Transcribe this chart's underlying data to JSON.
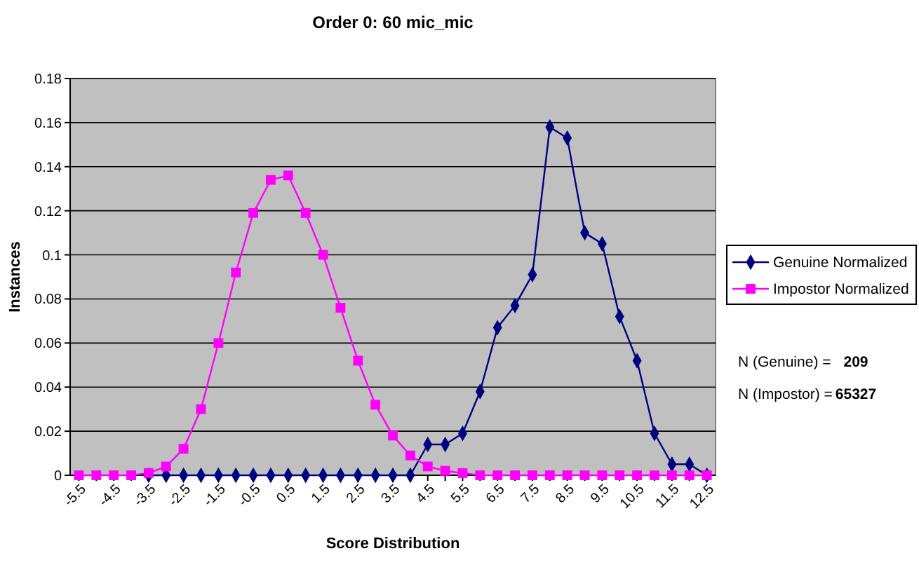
{
  "chart_data": {
    "type": "line",
    "title": "Order 0: 60 mic_mic",
    "xlabel": "Score Distribution",
    "ylabel": "Instances",
    "categories": [
      "-5.5",
      null,
      "-4.5",
      null,
      "-3.5",
      null,
      "-2.5",
      null,
      "-1.5",
      null,
      "-0.5",
      null,
      "0.5",
      null,
      "1.5",
      null,
      "2.5",
      null,
      "3.5",
      null,
      "4.5",
      null,
      "5.5",
      null,
      "6.5",
      null,
      "7.5",
      null,
      "8.5",
      null,
      "9.5",
      null,
      "10.5",
      null,
      "11.5",
      null,
      "12.5"
    ],
    "series": [
      {
        "name": "Genuine Normalized",
        "color": "#000080",
        "marker": "diamond",
        "values": [
          null,
          null,
          null,
          null,
          0,
          0,
          0,
          0,
          0,
          0,
          0,
          0,
          0,
          0,
          0,
          0,
          0,
          0,
          0,
          0,
          0.014,
          0.014,
          0.019,
          0.038,
          0.067,
          0.077,
          0.091,
          0.158,
          0.153,
          0.11,
          0.105,
          0.072,
          0.052,
          0.019,
          0.005,
          0.005,
          0
        ]
      },
      {
        "name": "Impostor Normalized",
        "color": "#ff00ff",
        "marker": "square",
        "values": [
          0,
          0,
          0,
          0,
          0.001,
          0.004,
          0.012,
          0.03,
          0.06,
          0.092,
          0.119,
          0.134,
          0.136,
          0.119,
          0.1,
          0.076,
          0.052,
          0.032,
          0.018,
          0.009,
          0.004,
          0.002,
          0.001,
          0,
          0,
          0,
          0,
          0,
          0,
          0,
          0,
          0,
          0,
          0,
          0,
          0,
          0
        ]
      }
    ],
    "ylim": [
      0,
      0.18
    ],
    "yticks": [
      0,
      0.02,
      0.04,
      0.06,
      0.08,
      0.1,
      0.12,
      0.14,
      0.16,
      0.18
    ],
    "grid": "y",
    "legend": "right",
    "annotations": [
      "N (Genuine) =",
      "209",
      "N (Impostor) =",
      "65327"
    ]
  }
}
